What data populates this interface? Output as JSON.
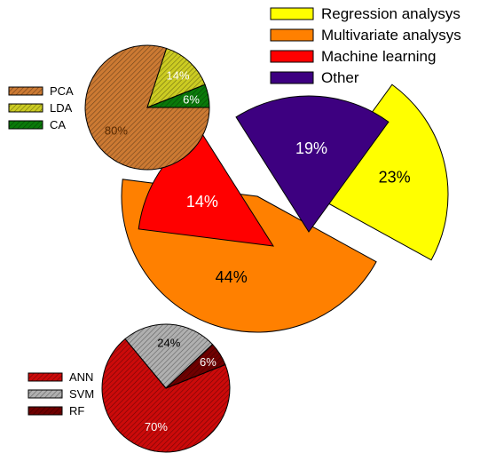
{
  "chart_data": [
    {
      "type": "pie",
      "role": "main",
      "exploded": true,
      "legend_position": "top-right",
      "slices": [
        {
          "label": "Regression analysys",
          "value": 23,
          "value_label": "23%",
          "color": "#ffff00",
          "label_color": "#000000"
        },
        {
          "label": "Multivariate analysys",
          "value": 44,
          "value_label": "44%",
          "color": "#ff8000",
          "label_color": "#000000"
        },
        {
          "label": "Machine learning",
          "value": 14,
          "value_label": "14%",
          "color": "#ff0000",
          "label_color": "#ffffff"
        },
        {
          "label": "Other",
          "value": 19,
          "value_label": "19%",
          "color": "#3d0080",
          "label_color": "#ffffff"
        }
      ]
    },
    {
      "type": "pie",
      "role": "breakdown",
      "parent": "Multivariate analysys",
      "hatched": true,
      "legend_position": "left",
      "slices": [
        {
          "label": "PCA",
          "value": 80,
          "value_label": "80%",
          "color": "#cc7a33",
          "label_color": "#5a2a00"
        },
        {
          "label": "LDA",
          "value": 14,
          "value_label": "14%",
          "color": "#cccc22",
          "label_color": "#ffffff"
        },
        {
          "label": "CA",
          "value": 6,
          "value_label": "6%",
          "color": "#0a7a0a",
          "label_color": "#ffffff"
        }
      ]
    },
    {
      "type": "pie",
      "role": "breakdown",
      "parent": "Machine learning",
      "hatched": true,
      "legend_position": "left",
      "slices": [
        {
          "label": "ANN",
          "value": 70,
          "value_label": "70%",
          "color": "#cc0a0a",
          "label_color": "#ffffff"
        },
        {
          "label": "SVM",
          "value": 24,
          "value_label": "24%",
          "color": "#b0b0b0",
          "label_color": "#000000"
        },
        {
          "label": "RF",
          "value": 6,
          "value_label": "6%",
          "color": "#700000",
          "label_color": "#ffffff"
        }
      ]
    }
  ]
}
